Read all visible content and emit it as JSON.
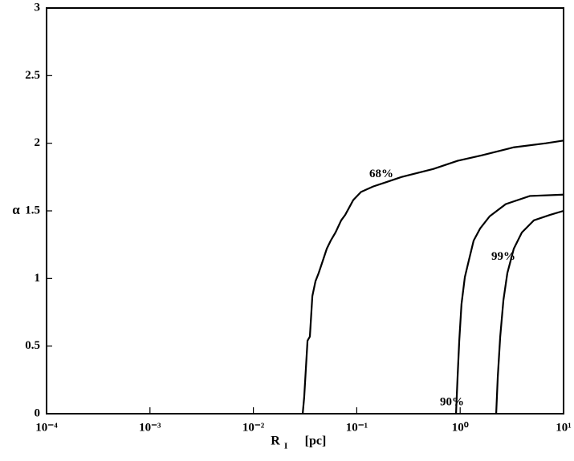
{
  "chart_data": {
    "type": "line",
    "ylabel": "α",
    "xlabel": {
      "symbol": "R",
      "subscript": "I",
      "unit": "[pc]"
    },
    "xscale": "log",
    "xlim": [
      0.0001,
      10
    ],
    "xticks": [
      {
        "value": 0.0001,
        "label": "10⁻⁴"
      },
      {
        "value": 0.001,
        "label": "10⁻³"
      },
      {
        "value": 0.01,
        "label": "10⁻²"
      },
      {
        "value": 0.1,
        "label": "10⁻¹"
      },
      {
        "value": 1,
        "label": "10⁰"
      },
      {
        "value": 10,
        "label": "10¹"
      }
    ],
    "ylim": [
      0,
      3
    ],
    "yticks": [
      0,
      0.5,
      1,
      1.5,
      2,
      2.5,
      3
    ],
    "series": [
      {
        "name": "68%",
        "color": "#000000",
        "x": [
          0.03,
          0.031,
          0.0334,
          0.0352,
          0.0372,
          0.0399,
          0.0428,
          0.0469,
          0.0513,
          0.056,
          0.0623,
          0.0707,
          0.0773,
          0.0925,
          0.11,
          0.144,
          0.189,
          0.27,
          0.552,
          0.944,
          1.61,
          3.3,
          6.75,
          10
        ],
        "values": [
          0,
          0.12,
          0.54,
          0.57,
          0.87,
          0.98,
          1.04,
          1.13,
          1.22,
          1.28,
          1.34,
          1.43,
          1.47,
          1.58,
          1.64,
          1.68,
          1.71,
          1.75,
          1.81,
          1.87,
          1.91,
          1.97,
          2.0,
          2.02
        ]
      },
      {
        "name": "90%",
        "color": "#000000",
        "x": [
          0.912,
          0.944,
          0.98,
          1.03,
          1.11,
          1.21,
          1.35,
          1.56,
          1.93,
          2.76,
          4.72,
          10
        ],
        "values": [
          0,
          0.27,
          0.54,
          0.81,
          1.01,
          1.13,
          1.28,
          1.37,
          1.46,
          1.55,
          1.61,
          1.62
        ]
      },
      {
        "name": "99%",
        "color": "#000000",
        "x": [
          2.23,
          2.31,
          2.44,
          2.62,
          2.86,
          3.3,
          3.95,
          5.16,
          7.38,
          10
        ],
        "values": [
          0,
          0.27,
          0.57,
          0.84,
          1.04,
          1.22,
          1.34,
          1.43,
          1.47,
          1.5
        ]
      }
    ]
  }
}
